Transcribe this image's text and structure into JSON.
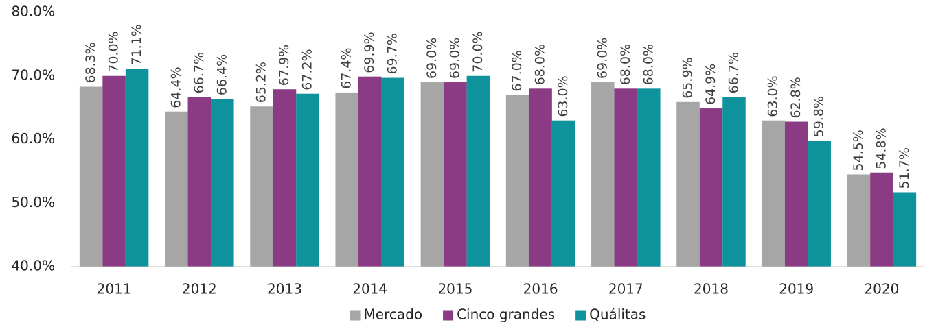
{
  "chart_data": {
    "type": "bar",
    "categories": [
      "2011",
      "2012",
      "2013",
      "2014",
      "2015",
      "2016",
      "2017",
      "2018",
      "2019",
      "2020"
    ],
    "series": [
      {
        "name": "Mercado",
        "color": "#a6a6a6",
        "values": [
          68.3,
          64.4,
          65.2,
          67.4,
          69.0,
          67.0,
          69.0,
          65.9,
          63.0,
          54.5
        ],
        "value_labels": [
          "68.3%",
          "64.4%",
          "65.2%",
          "67.4%",
          "69.0%",
          "67.0%",
          "69.0%",
          "65.9%",
          "63.0%",
          "54.5%"
        ]
      },
      {
        "name": "Cinco grandes",
        "color": "#8b3a84",
        "values": [
          70.0,
          66.7,
          67.9,
          69.9,
          69.0,
          68.0,
          68.0,
          64.9,
          62.8,
          54.8
        ],
        "value_labels": [
          "70.0%",
          "66.7%",
          "67.9%",
          "69.9%",
          "69.0%",
          "68.0%",
          "68.0%",
          "64.9%",
          "62.8%",
          "54.8%"
        ]
      },
      {
        "name": "Quálitas",
        "color": "#0e939d",
        "values": [
          71.1,
          66.4,
          67.2,
          69.7,
          70.0,
          63.0,
          68.0,
          66.7,
          59.8,
          51.7
        ],
        "value_labels": [
          "71.1%",
          "66.4%",
          "67.2%",
          "69.7%",
          "70.0%",
          "63.0%",
          "68.0%",
          "66.7%",
          "59.8%",
          "51.7%"
        ]
      }
    ],
    "ylim": [
      40,
      80
    ],
    "yticks": [
      {
        "value": 40,
        "label": "40.0%"
      },
      {
        "value": 50,
        "label": "50.0%"
      },
      {
        "value": 60,
        "label": "60.0%"
      },
      {
        "value": 70,
        "label": "70.0%"
      },
      {
        "value": 80,
        "label": "80.0%"
      }
    ],
    "grid": false,
    "legend": "bottom"
  }
}
